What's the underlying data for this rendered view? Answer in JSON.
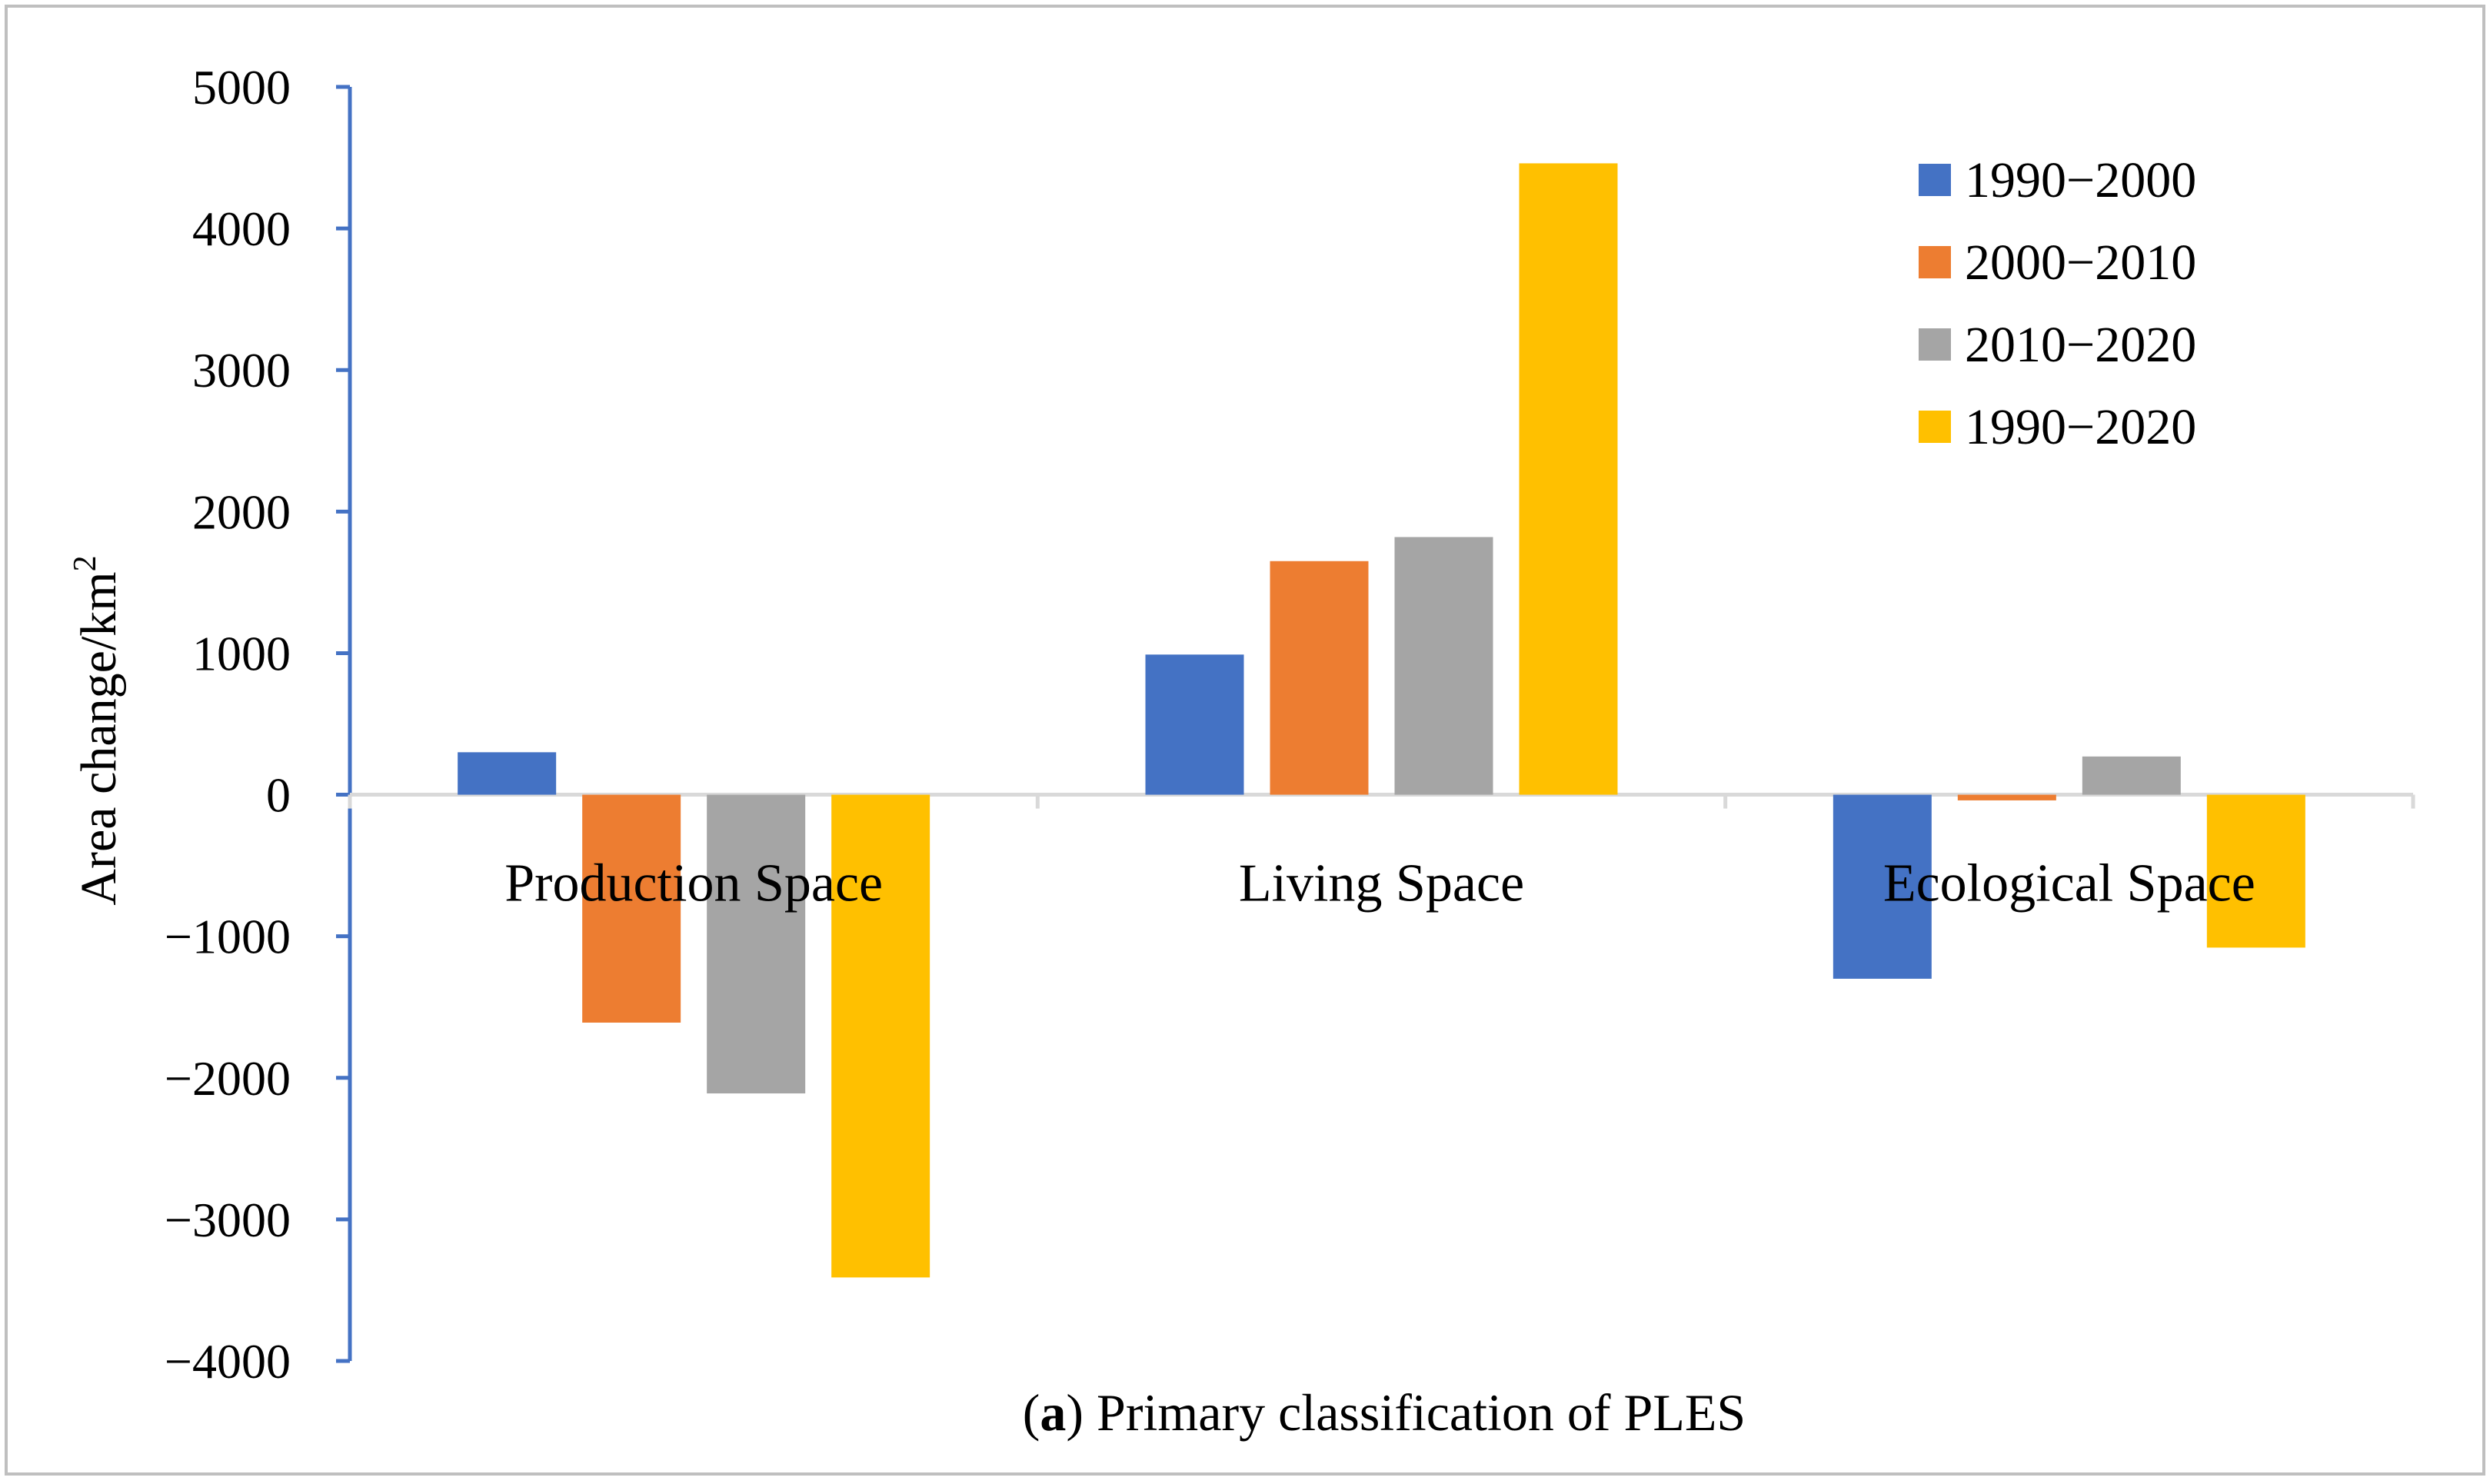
{
  "chart_data": {
    "type": "bar",
    "title": "",
    "caption_bold": "a",
    "caption_text": "Primary classification of PLES",
    "ylabel": "Area change/km",
    "ylabel_superscript": "2",
    "xlabel": "",
    "ylim": [
      -4000,
      5000
    ],
    "yticks": [
      5000,
      4000,
      3000,
      2000,
      1000,
      0,
      -1000,
      -2000,
      -3000,
      -4000
    ],
    "ytick_labels": [
      "5000",
      "4000",
      "3000",
      "2000",
      "1000",
      "0",
      "−1000",
      "−2000",
      "−3000",
      "−4000"
    ],
    "grid": false,
    "legend_position": "top-right",
    "categories": [
      "Production Space",
      "Living Space",
      "Ecological Space"
    ],
    "series": [
      {
        "name": "1990−2000",
        "color": "#4472C4",
        "values": [
          300,
          990,
          -1300
        ]
      },
      {
        "name": "2000−2010",
        "color": "#ED7D31",
        "values": [
          -1610,
          1650,
          -40
        ]
      },
      {
        "name": "2010−2020",
        "color": "#A5A5A5",
        "values": [
          -2110,
          1820,
          270
        ]
      },
      {
        "name": "1990−2020",
        "color": "#FFC000",
        "values": [
          -3410,
          4460,
          -1080
        ]
      }
    ],
    "axis_color": "#4472C4"
  }
}
